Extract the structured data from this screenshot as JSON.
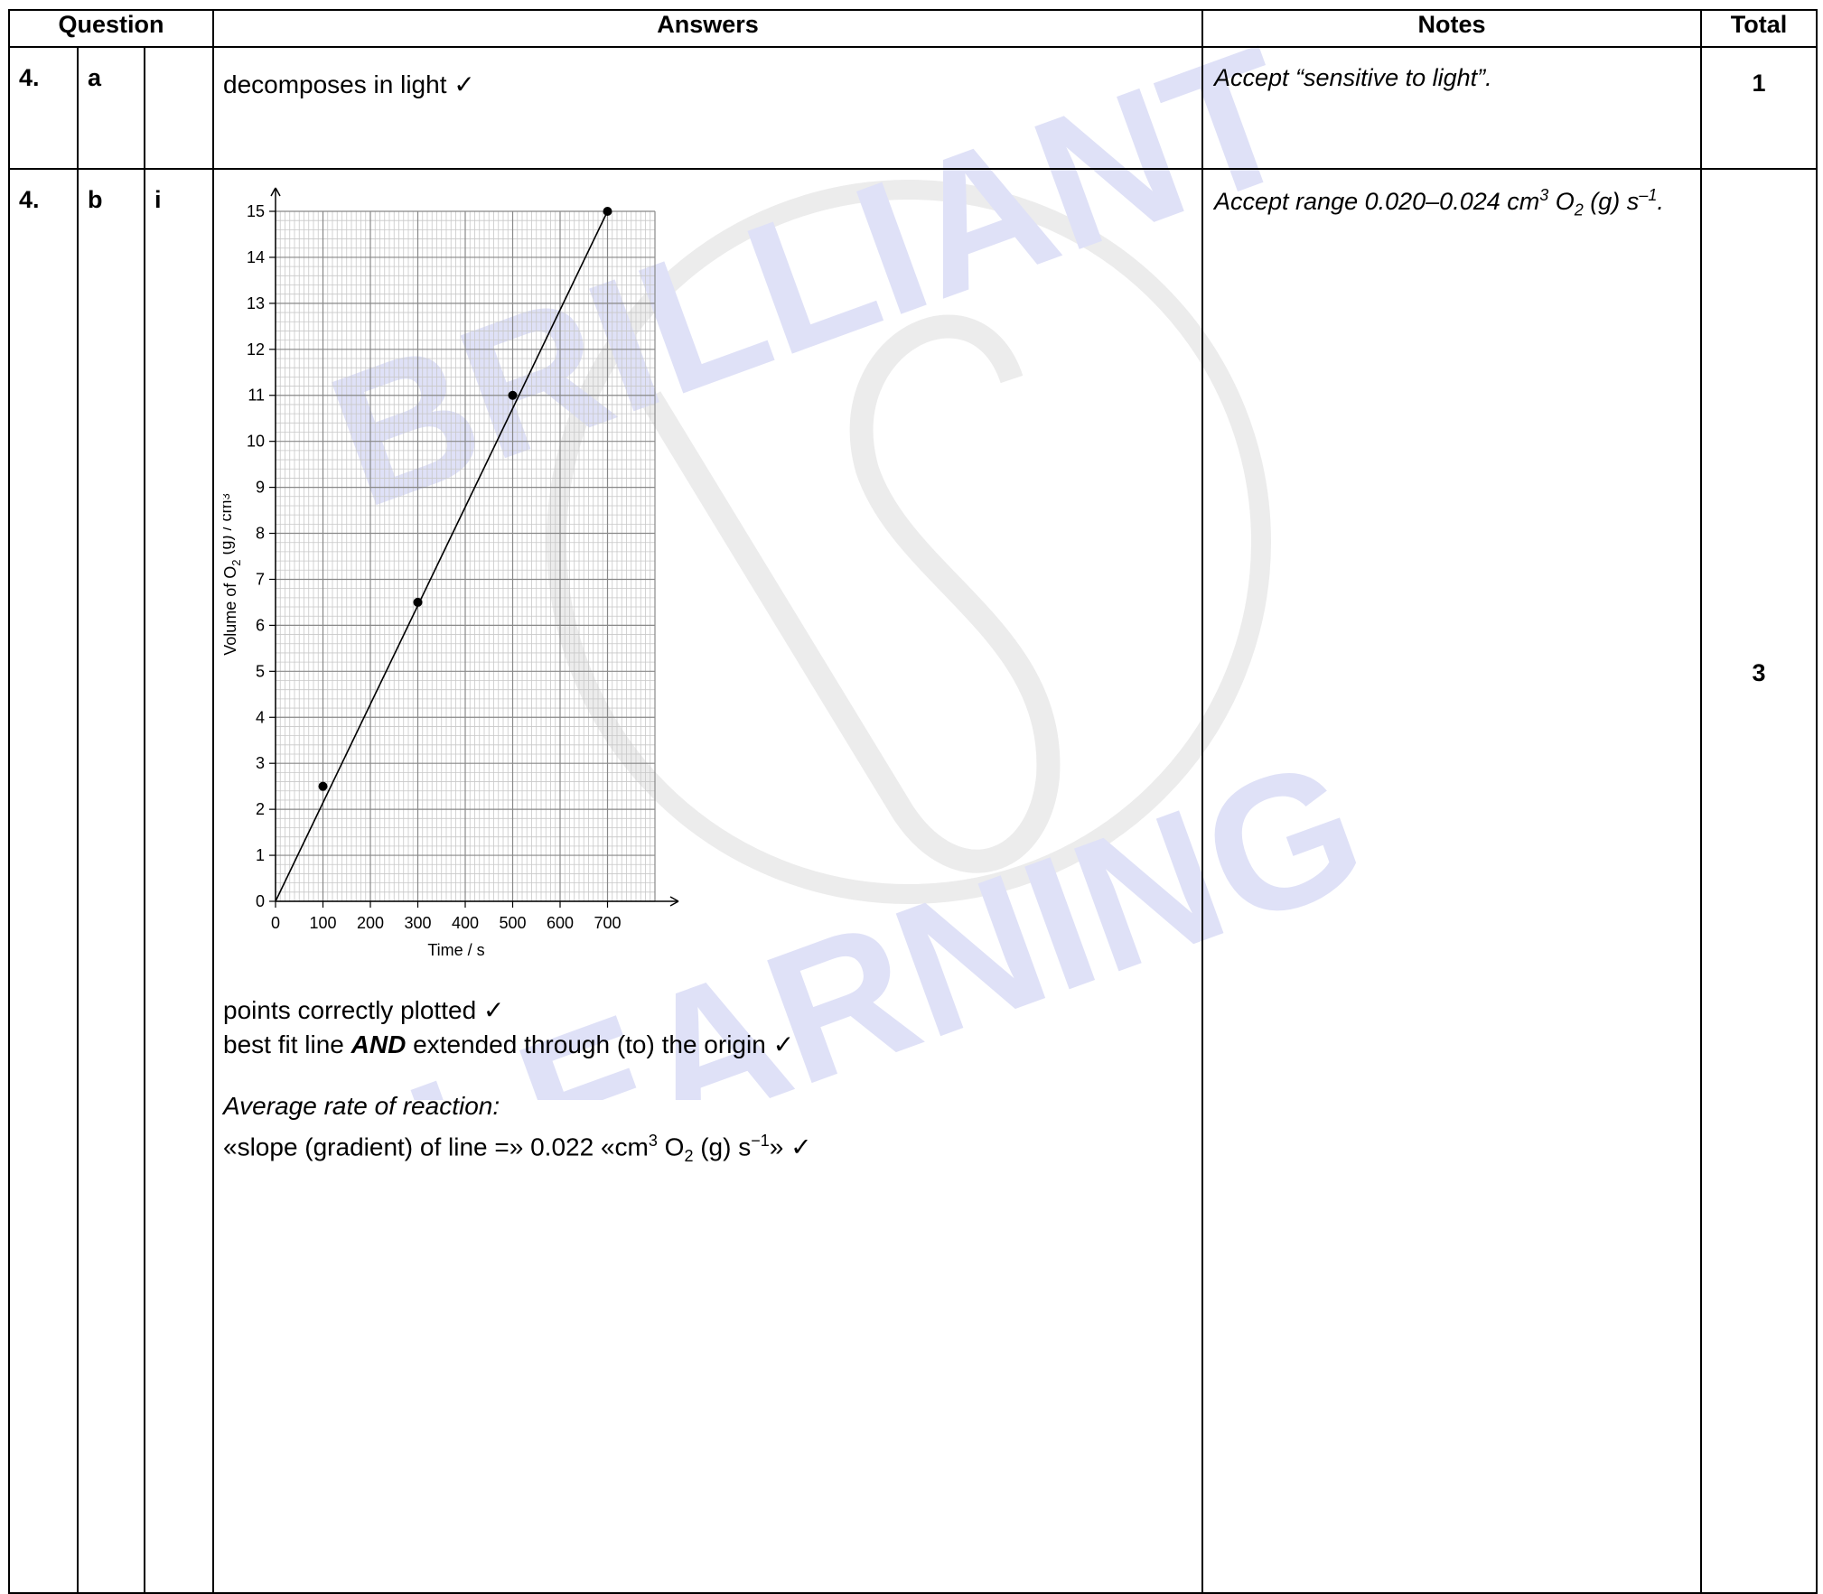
{
  "header": {
    "question": "Question",
    "answers": "Answers",
    "notes": "Notes",
    "total": "Total"
  },
  "rows": [
    {
      "q1": "4.",
      "q2": "a",
      "q3": "",
      "answer": "decomposes in light ✓",
      "note": "Accept “sensitive to light”.",
      "total": "1"
    },
    {
      "q1": "4.",
      "q2": "b",
      "q3": "i",
      "note_pre": "Accept range 0.020–0.024 cm",
      "note_sup1": "3",
      "note_mid": " O",
      "note_sub": "2",
      "note_post": " (g) s",
      "note_sup2": "–1",
      "note_end": ".",
      "total": "3",
      "answer_line1": "points correctly plotted ✓",
      "answer_line2_bold": "AND",
      "answer_line2_pre": "best fit line ",
      "answer_line2_post": " extended through (to) the origin ✓",
      "answer_line3": "Average rate of reaction:",
      "answer_line4_pre": "«slope (gradient) of line =» 0.022 «cm",
      "answer_line4_sup": "3",
      "answer_line4_o": " O",
      "answer_line4_sub": "2",
      "answer_line4_g": " (g) s",
      "answer_line4_sup2": "−1",
      "answer_line4_end": "» ✓"
    }
  ],
  "watermark": {
    "text_top": "BRILLIANT",
    "text_bottom": "LEARNING",
    "color": "#dfe1f7",
    "circle_color": "#ececec"
  },
  "chart_data": {
    "type": "scatter",
    "xlabel": "Time / s",
    "ylabel_pre": "Volume of O",
    "ylabel_sub": "2",
    "ylabel_post": " (g) / cm",
    "ylabel_sup": "3",
    "xlim": [
      0,
      800
    ],
    "ylim": [
      0,
      15
    ],
    "x_ticks": [
      0,
      100,
      200,
      300,
      400,
      500,
      600,
      700
    ],
    "y_ticks": [
      0,
      1,
      2,
      3,
      4,
      5,
      6,
      7,
      8,
      9,
      10,
      11,
      12,
      13,
      14,
      15
    ],
    "points": [
      {
        "x": 100,
        "y": 2.5
      },
      {
        "x": 300,
        "y": 6.5
      },
      {
        "x": 500,
        "y": 11
      },
      {
        "x": 700,
        "y": 15
      }
    ],
    "best_fit_line": {
      "from": [
        0,
        0
      ],
      "to": [
        700,
        15
      ]
    },
    "grid": true
  }
}
